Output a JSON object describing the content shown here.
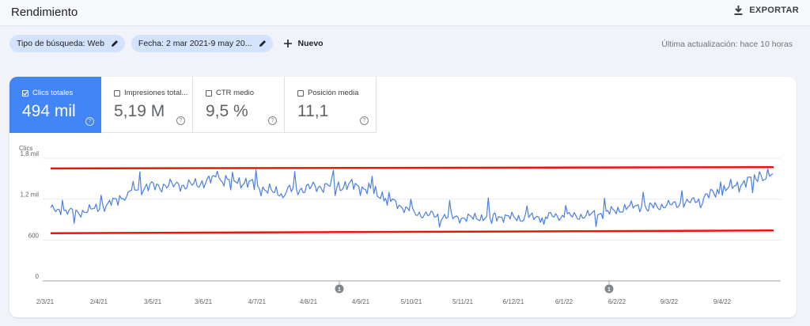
{
  "header": {
    "title": "Rendimiento",
    "export_label": "EXPORTAR"
  },
  "filters": {
    "search_type": "Tipo de búsqueda: Web",
    "date": "Fecha: 2 mar 2021-9 may 20...",
    "new_label": "Nuevo",
    "last_update": "Última actualización: hace 10 horas"
  },
  "metrics": [
    {
      "label": "Clics totales",
      "value": "494 mil",
      "checked": true
    },
    {
      "label": "Impresiones total...",
      "value": "5,19 M",
      "checked": false
    },
    {
      "label": "CTR medio",
      "value": "9,5 %",
      "checked": false
    },
    {
      "label": "Posición media",
      "value": "11,1",
      "checked": false
    }
  ],
  "colors": {
    "accent": "#4285f4",
    "line": "#4a7fe0",
    "annotation": "#e8160c"
  },
  "annotation_markers": [
    "1",
    "1"
  ],
  "chart_data": {
    "type": "line",
    "title": "",
    "ylabel": "Clics",
    "xlabel": "",
    "ylim": [
      0,
      1800
    ],
    "y_ticks": [
      0,
      600,
      1200,
      1800
    ],
    "y_tick_labels": [
      "0",
      "600",
      "1,2 mil",
      "1,8 mil"
    ],
    "x_tick_labels": [
      "2/3/21",
      "2/4/21",
      "3/5/21",
      "3/6/21",
      "4/7/21",
      "4/8/21",
      "4/9/21",
      "5/10/21",
      "5/11/21",
      "6/12/21",
      "6/1/22",
      "6/2/22",
      "9/3/22",
      "9/4/22"
    ],
    "grid": true,
    "series": [
      {
        "name": "Clics totales",
        "anchors": [
          1050,
          1000,
          1100,
          1350,
          1400,
          1400,
          1500,
          1450,
          1300,
          1350,
          1400,
          1400,
          1250,
          1000,
          950,
          920,
          950,
          920,
          950,
          950,
          1000,
          1100,
          1100,
          1150,
          1300,
          1450,
          1550
        ]
      }
    ],
    "annotations": [
      {
        "type": "trend-line",
        "from": 1650,
        "to": 1670
      },
      {
        "type": "trend-line",
        "from": 700,
        "to": 740
      }
    ]
  }
}
